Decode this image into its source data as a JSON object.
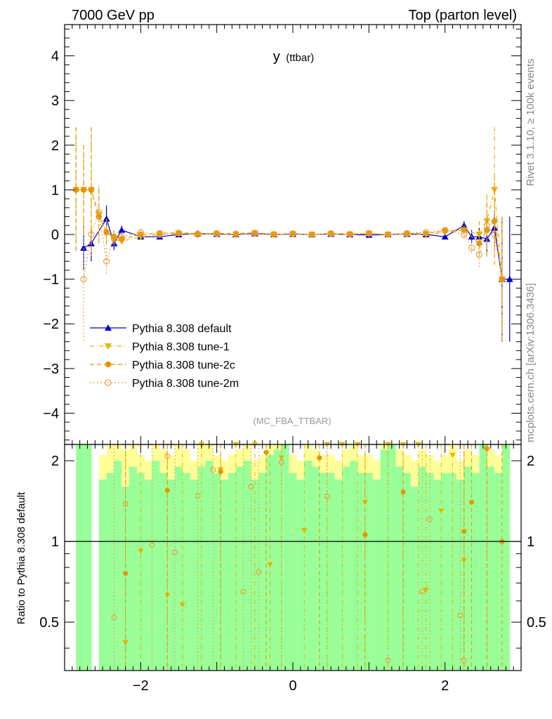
{
  "header": {
    "left": "7000 GeV pp",
    "right": "Top (parton level)"
  },
  "side_labels": {
    "rivet": "Rivet 3.1.10, ≥ 100k events",
    "mcplots": "mcplots.cern.ch [arXiv:1306.3436]"
  },
  "plot_title": {
    "main": "y",
    "sub": "(ttbar)"
  },
  "analysis_id": "(MC_FBA_TTBAR)",
  "ratio_ylabel": "Ratio to Pythia 8.308 default",
  "colors": {
    "default": "#0000cc",
    "tune1": "#e6b400",
    "tune2c": "#e69500",
    "tune2m": "#e6a040",
    "band_inner": "#99ff99",
    "band_outer": "#ffff99"
  },
  "chart_data": [
    {
      "type": "scatter",
      "panel": "main",
      "title": "y (ttbar)",
      "xlim": [
        -3.0,
        3.0
      ],
      "ylim": [
        -4.7,
        4.7
      ],
      "yticks": [
        -4,
        -3,
        -2,
        -1,
        0,
        1,
        2,
        3,
        4
      ],
      "ytick_labels": [
        "−4",
        "−3",
        "−2",
        "−1",
        "0",
        "1",
        "2",
        "3",
        "4"
      ],
      "legend_position": "center-left",
      "series": [
        {
          "key": "default",
          "name": "Pythia 8.308 default",
          "marker": "triangle-up",
          "line": "solid",
          "x": [
            -2.75,
            -2.65,
            -2.45,
            -2.35,
            -2.25,
            -2.0,
            -1.75,
            -1.5,
            -1.25,
            -1.0,
            -0.75,
            -0.5,
            -0.25,
            0.0,
            0.25,
            0.5,
            0.75,
            1.0,
            1.25,
            1.5,
            1.75,
            2.0,
            2.25,
            2.35,
            2.45,
            2.55,
            2.65,
            2.75,
            2.85
          ],
          "y": [
            -0.3,
            -0.2,
            0.35,
            -0.2,
            0.1,
            -0.05,
            -0.05,
            0.0,
            0.02,
            0.01,
            0.0,
            0.02,
            0.0,
            0.01,
            0.0,
            0.01,
            0.0,
            -0.01,
            0.0,
            0.01,
            0.0,
            -0.05,
            0.2,
            -0.05,
            -0.05,
            -0.1,
            0.15,
            -1.0,
            -1.0
          ],
          "err": [
            0.5,
            0.4,
            0.3,
            0.15,
            0.1,
            0.05,
            0.04,
            0.03,
            0.03,
            0.03,
            0.03,
            0.03,
            0.03,
            0.03,
            0.03,
            0.03,
            0.03,
            0.03,
            0.03,
            0.03,
            0.04,
            0.05,
            0.1,
            0.15,
            0.2,
            0.3,
            0.4,
            1.4,
            1.4
          ]
        },
        {
          "key": "tune1",
          "name": "Pythia 8.308 tune-1",
          "marker": "triangle-down",
          "line": "dashdot",
          "x": [
            -2.85,
            -2.75,
            -2.65,
            -2.55,
            -2.45,
            -2.35,
            -2.25,
            -2.0,
            -1.75,
            -1.5,
            -1.25,
            -1.0,
            -0.75,
            -0.5,
            -0.25,
            0.0,
            0.25,
            0.5,
            0.75,
            1.0,
            1.25,
            1.5,
            1.75,
            2.0,
            2.25,
            2.45,
            2.55,
            2.65,
            2.75
          ],
          "y": [
            1.0,
            1.0,
            1.0,
            0.45,
            0.05,
            -0.1,
            -0.15,
            -0.05,
            0.0,
            0.02,
            0.0,
            0.01,
            0.0,
            0.03,
            0.0,
            0.01,
            0.0,
            0.01,
            0.0,
            0.02,
            0.0,
            0.01,
            0.0,
            0.05,
            0.1,
            0.0,
            0.3,
            1.0,
            -1.0
          ],
          "err": [
            1.4,
            1.0,
            1.4,
            0.6,
            0.3,
            0.15,
            0.1,
            0.05,
            0.04,
            0.03,
            0.03,
            0.03,
            0.03,
            0.03,
            0.03,
            0.03,
            0.03,
            0.03,
            0.03,
            0.03,
            0.03,
            0.03,
            0.04,
            0.05,
            0.1,
            0.3,
            0.6,
            1.4,
            1.4
          ]
        },
        {
          "key": "tune2c",
          "name": "Pythia 8.308 tune-2c",
          "marker": "circle",
          "line": "dashed",
          "x": [
            -2.85,
            -2.75,
            -2.65,
            -2.55,
            -2.45,
            -2.35,
            -2.25,
            -2.0,
            -1.75,
            -1.5,
            -1.25,
            -1.0,
            -0.75,
            -0.5,
            -0.25,
            0.0,
            0.25,
            0.5,
            0.75,
            1.0,
            1.25,
            1.5,
            1.75,
            2.0,
            2.25,
            2.45,
            2.55,
            2.65,
            2.75
          ],
          "y": [
            1.0,
            1.0,
            1.0,
            0.4,
            0.05,
            -0.05,
            -0.1,
            0.0,
            0.03,
            0.04,
            0.02,
            0.03,
            0.02,
            0.04,
            0.01,
            0.02,
            0.0,
            0.03,
            0.01,
            0.02,
            0.0,
            0.03,
            0.02,
            0.08,
            0.1,
            -0.2,
            0.1,
            0.3,
            -1.0
          ],
          "err": [
            1.4,
            1.0,
            1.4,
            0.6,
            0.3,
            0.15,
            0.1,
            0.05,
            0.04,
            0.03,
            0.03,
            0.03,
            0.03,
            0.03,
            0.03,
            0.03,
            0.03,
            0.03,
            0.03,
            0.03,
            0.03,
            0.03,
            0.04,
            0.05,
            0.1,
            0.3,
            0.6,
            1.0,
            1.4
          ]
        },
        {
          "key": "tune2m",
          "name": "Pythia 8.308 tune-2m",
          "marker": "circle-open",
          "line": "dotted",
          "x": [
            -2.75,
            -2.65,
            -2.55,
            -2.45,
            -2.35,
            -2.25,
            -2.0,
            -1.75,
            -1.5,
            -1.25,
            -1.0,
            -0.75,
            -0.5,
            -0.25,
            0.0,
            0.25,
            0.5,
            0.75,
            1.0,
            1.25,
            1.5,
            1.75,
            2.0,
            2.25,
            2.35,
            2.45,
            2.55,
            2.65,
            2.75
          ],
          "y": [
            -1.0,
            0.0,
            0.5,
            -0.6,
            -0.1,
            -0.05,
            0.05,
            0.0,
            0.03,
            0.0,
            0.02,
            0.0,
            0.03,
            0.0,
            0.02,
            0.0,
            0.02,
            0.01,
            0.03,
            0.0,
            0.02,
            0.05,
            0.1,
            0.0,
            -0.3,
            -0.45,
            0.2,
            0.0,
            -1.0
          ],
          "err": [
            1.4,
            0.5,
            0.6,
            0.3,
            0.15,
            0.1,
            0.05,
            0.04,
            0.03,
            0.03,
            0.03,
            0.03,
            0.03,
            0.03,
            0.03,
            0.03,
            0.03,
            0.03,
            0.03,
            0.03,
            0.03,
            0.04,
            0.05,
            0.1,
            0.15,
            0.3,
            0.6,
            0.5,
            1.4
          ]
        }
      ]
    },
    {
      "type": "scatter",
      "panel": "ratio",
      "ylabel": "Ratio to Pythia 8.308 default",
      "xlim": [
        -3.0,
        3.0
      ],
      "ylim": [
        0.33,
        2.3
      ],
      "xticks": [
        -2,
        0,
        2
      ],
      "xtick_labels": [
        "−2",
        "0",
        "2"
      ],
      "yticks": [
        0.5,
        1,
        2
      ],
      "ytick_labels": [
        "0.5",
        "1",
        "2"
      ],
      "reference_line": 1,
      "band_x": [
        -2.8,
        -2.7,
        -2.6,
        -2.5,
        -2.4,
        -2.3,
        -2.2,
        -2.1,
        -2.0,
        -1.9,
        -1.8,
        -1.7,
        -1.6,
        -1.5,
        -1.4,
        -1.3,
        -1.2,
        -1.1,
        -1.0,
        -0.9,
        -0.8,
        -0.7,
        -0.6,
        -0.5,
        -0.4,
        -0.3,
        -0.2,
        -0.1,
        0.0,
        0.1,
        0.2,
        0.3,
        0.4,
        0.5,
        0.6,
        0.7,
        0.8,
        0.9,
        1.0,
        1.1,
        1.2,
        1.3,
        1.4,
        1.5,
        1.6,
        1.7,
        1.8,
        1.9,
        2.0,
        2.1,
        2.2,
        2.3,
        2.4,
        2.5,
        2.6,
        2.7,
        2.8
      ],
      "band_green_hi": [
        2.4,
        2.4,
        0.0,
        1.7,
        1.8,
        2.0,
        1.6,
        1.9,
        1.8,
        1.7,
        2.0,
        1.8,
        1.7,
        1.9,
        1.8,
        1.7,
        1.9,
        2.0,
        1.8,
        1.7,
        1.8,
        1.9,
        2.0,
        1.7,
        1.8,
        2.1,
        2.2,
        2.4,
        1.8,
        1.7,
        2.0,
        1.9,
        1.8,
        1.8,
        1.7,
        1.9,
        2.0,
        1.8,
        1.8,
        1.7,
        2.2,
        2.3,
        1.9,
        1.8,
        1.6,
        1.9,
        1.8,
        1.7,
        1.8,
        1.8,
        1.7,
        1.9,
        1.8,
        2.4,
        1.9,
        1.8,
        2.4
      ],
      "band_yellow_hi": [
        2.4,
        2.4,
        0.0,
        2.1,
        2.3,
        2.4,
        2.2,
        2.3,
        2.1,
        2.0,
        2.3,
        2.2,
        2.1,
        2.3,
        2.2,
        2.0,
        2.4,
        2.4,
        2.1,
        2.0,
        2.1,
        2.2,
        2.4,
        2.0,
        2.1,
        2.4,
        2.4,
        2.4,
        2.1,
        2.0,
        2.3,
        2.2,
        2.1,
        2.1,
        2.0,
        2.2,
        2.4,
        2.1,
        2.1,
        2.0,
        2.4,
        2.4,
        2.2,
        2.1,
        2.0,
        2.2,
        2.1,
        2.0,
        2.1,
        2.3,
        2.0,
        2.2,
        2.1,
        2.4,
        2.2,
        2.1,
        2.4
      ],
      "series": [
        {
          "key": "tune1",
          "x": [
            -2.2,
            -2.0,
            -1.65,
            -1.45,
            -1.2,
            -0.95,
            -0.75,
            -0.5,
            -0.3,
            -0.15,
            0.15,
            0.45,
            0.65,
            0.85,
            0.95,
            1.25,
            1.45,
            1.65,
            1.75,
            1.95,
            2.1,
            2.25,
            2.55
          ],
          "y": [
            0.42,
            0.92,
            0.63,
            0.58,
            2.3,
            1.85,
            2.3,
            2.3,
            0.82,
            2.05,
            1.1,
            2.3,
            2.3,
            2.3,
            1.4,
            2.3,
            2.3,
            2.3,
            0.66,
            1.3,
            2.1,
            0.85,
            2.2
          ]
        },
        {
          "key": "tune2c",
          "x": [
            -2.2,
            -1.65,
            -0.95,
            -0.35,
            0.35,
            0.95,
            1.45,
            2.25,
            2.35,
            2.55,
            2.75
          ],
          "y": [
            0.76,
            1.55,
            1.82,
            2.15,
            2.05,
            1.06,
            1.53,
            1.09,
            1.4,
            2.22,
            1.0
          ]
        },
        {
          "key": "tune2m",
          "x": [
            -2.35,
            -2.2,
            -1.85,
            -1.65,
            -1.55,
            -1.25,
            -1.05,
            -0.65,
            -0.55,
            -0.45,
            -0.15,
            0.45,
            1.25,
            1.7,
            1.8,
            2.2,
            2.25
          ],
          "y": [
            0.52,
            1.38,
            0.97,
            2.08,
            0.91,
            1.48,
            1.85,
            0.65,
            1.6,
            0.77,
            1.97,
            1.47,
            0.36,
            0.65,
            1.21,
            0.53,
            0.36
          ]
        }
      ]
    }
  ]
}
